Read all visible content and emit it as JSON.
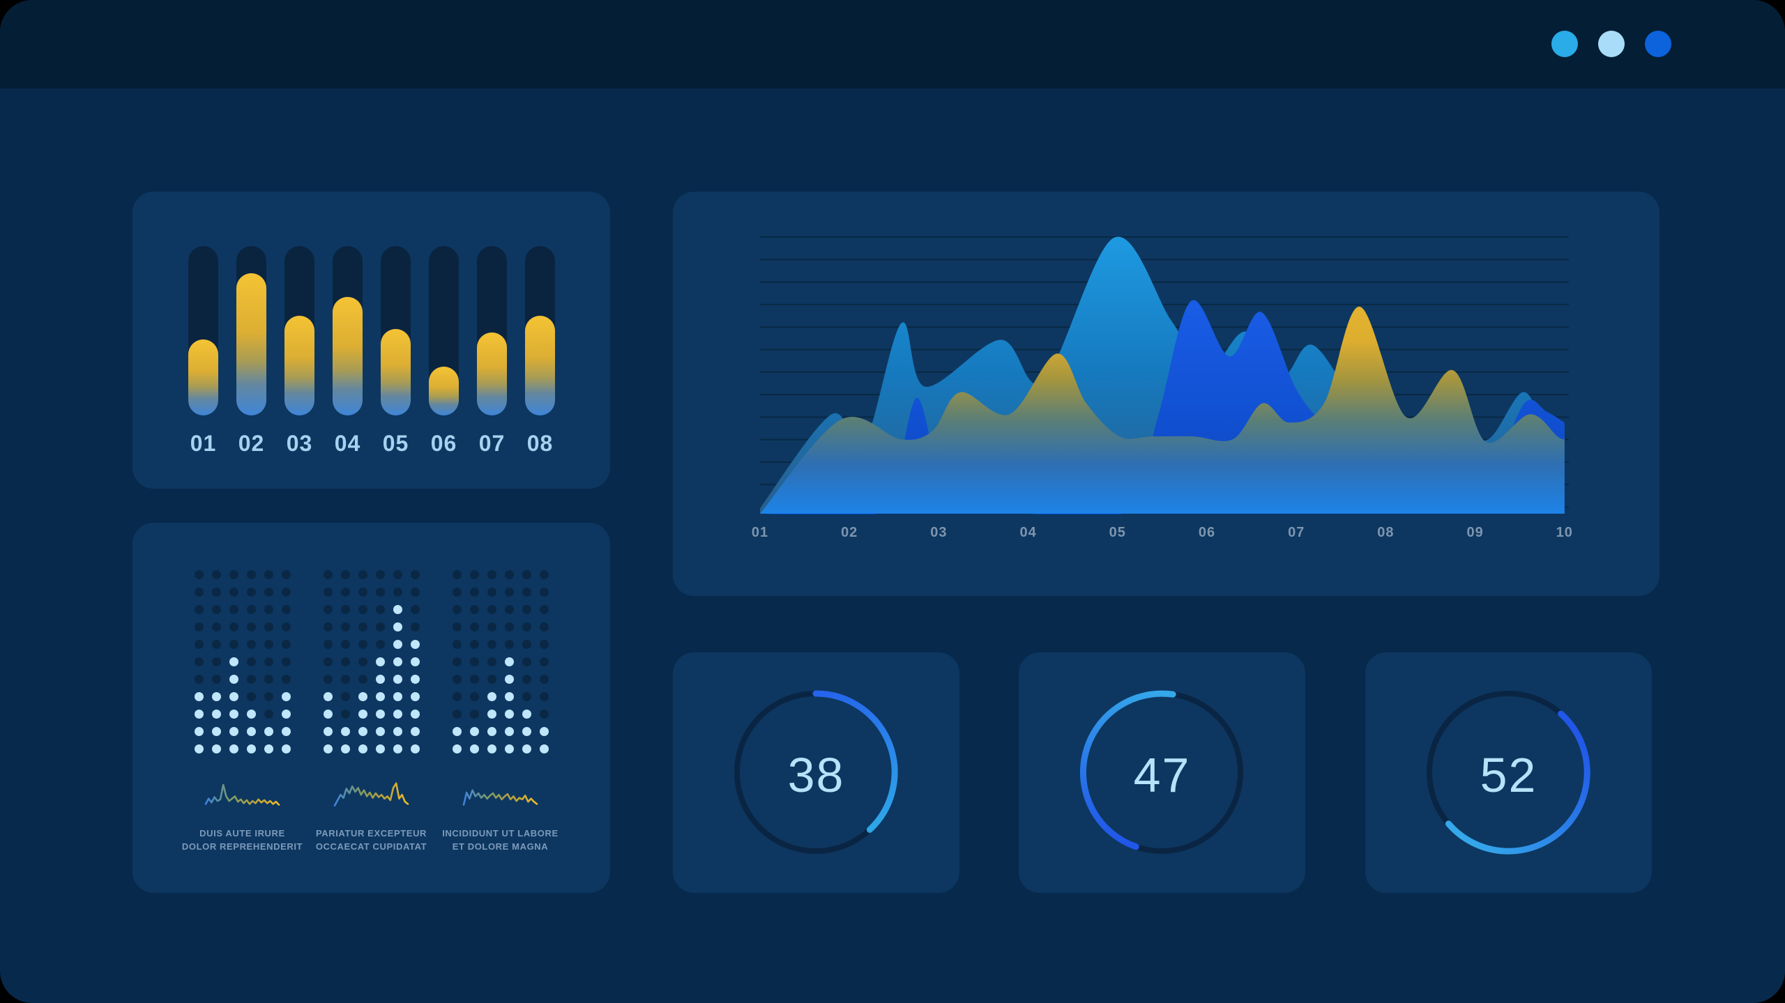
{
  "window": {
    "controls": [
      {
        "name": "cyan",
        "color": "#29ACE8"
      },
      {
        "name": "light",
        "color": "#A9DCF8"
      },
      {
        "name": "royal",
        "color": "#0C63DC"
      }
    ]
  },
  "theme": {
    "page_bg": "#000000",
    "window_bg": "#07294C",
    "topbar_bg": "#041E35",
    "card_bg": "#0D3760",
    "bar_track": "#0A2440",
    "dot_off": "#0A2845",
    "dot_on": "#BFE6FA",
    "bar_label": "#A5D3F0",
    "axis_label": "#7E95AF",
    "caption": "#7D9ABB",
    "gridline": "#092844",
    "gauge_track": "#0A2543",
    "gauge_number": "#B5E3FA",
    "accent_royal": "#2156E8",
    "accent_cyan": "#2FA5E8"
  },
  "chart_data": [
    {
      "type": "bar",
      "title": "",
      "categories": [
        "01",
        "02",
        "03",
        "04",
        "05",
        "06",
        "07",
        "08"
      ],
      "values": [
        45,
        84,
        59,
        70,
        51,
        29,
        49,
        59
      ],
      "ylim": [
        0,
        100
      ],
      "bar_gradient": [
        "#F4C334",
        "#DCAE33",
        "#A89C55",
        "#64879F",
        "#3F86D8"
      ]
    },
    {
      "type": "dot-matrix",
      "rows": 11,
      "cols": 6,
      "spark_gradient": [
        "#3E82DE",
        "#7E9B63",
        "#BCA23C",
        "#EABB2E"
      ],
      "groups": [
        {
          "caption": [
            "DUIS AUTE IRURE",
            "DOLOR REPREHENDERIT"
          ],
          "levels": [
            4,
            4,
            6,
            3,
            2,
            4
          ],
          "sparkline": [
            10,
            24,
            14,
            28,
            18,
            22,
            60,
            30,
            18,
            24,
            30,
            16,
            22,
            12,
            20,
            10,
            18,
            12,
            22,
            14,
            20,
            12,
            18,
            10,
            16,
            8
          ]
        },
        {
          "caption": [
            "PARIATUR EXCEPTEUR",
            "OCCAECAT CUPIDATAT"
          ],
          "levels": [
            4,
            2,
            4,
            6,
            9,
            7
          ],
          "sparkline": [
            6,
            20,
            34,
            26,
            50,
            38,
            56,
            42,
            52,
            34,
            46,
            30,
            40,
            26,
            38,
            28,
            34,
            24,
            30,
            20,
            52,
            64,
            24,
            34,
            16,
            10
          ]
        },
        {
          "caption": [
            "INCIDIDUNT UT LABORE",
            "ET DOLORE MAGNA"
          ],
          "levels": [
            2,
            2,
            4,
            6,
            3,
            2
          ],
          "sparkline": [
            8,
            40,
            24,
            46,
            30,
            38,
            26,
            34,
            24,
            32,
            38,
            26,
            34,
            22,
            30,
            36,
            22,
            30,
            18,
            26,
            22,
            32,
            16,
            24,
            16,
            10
          ]
        }
      ]
    },
    {
      "type": "area",
      "x_labels": [
        "01",
        "02",
        "03",
        "04",
        "05",
        "06",
        "07",
        "08",
        "09",
        "10"
      ],
      "gridlines": 13,
      "ylim": [
        0,
        100
      ],
      "legend": "none",
      "series": [
        {
          "name": "cerulean",
          "gradient": [
            "#1E9AE2",
            "#1679BE",
            "#285E8C"
          ],
          "points": [
            [
              1,
              2
            ],
            [
              1.8,
              36
            ],
            [
              2.15,
              24
            ],
            [
              2.58,
              69
            ],
            [
              2.85,
              46
            ],
            [
              3.69,
              63
            ],
            [
              4.17,
              48
            ],
            [
              4.96,
              100
            ],
            [
              5.6,
              70
            ],
            [
              6.0,
              52
            ],
            [
              6.43,
              66
            ],
            [
              6.84,
              50
            ],
            [
              7.19,
              61
            ],
            [
              7.77,
              36
            ],
            [
              8.33,
              30
            ],
            [
              8.8,
              30
            ],
            [
              9.15,
              27
            ],
            [
              9.53,
              44
            ],
            [
              9.77,
              33
            ],
            [
              10,
              32
            ]
          ]
        },
        {
          "name": "royal",
          "gradient": [
            "#1E63F2",
            "#0A46C0"
          ],
          "points": [
            [
              1,
              0
            ],
            [
              2.3,
              0
            ],
            [
              2.55,
              18
            ],
            [
              2.76,
              42
            ],
            [
              3.0,
              16
            ],
            [
              3.3,
              3
            ],
            [
              4.0,
              0
            ],
            [
              5.1,
              1
            ],
            [
              5.45,
              35
            ],
            [
              5.82,
              77
            ],
            [
              6.25,
              57
            ],
            [
              6.61,
              73
            ],
            [
              7.0,
              45
            ],
            [
              7.35,
              30
            ],
            [
              7.7,
              14
            ],
            [
              8.1,
              4
            ],
            [
              8.8,
              3
            ],
            [
              9.19,
              14
            ],
            [
              9.55,
              40
            ],
            [
              9.8,
              37
            ],
            [
              10,
              33
            ]
          ]
        },
        {
          "name": "gold",
          "gradient": [
            "#F2BE31",
            "#DDAD2F",
            "#A4953F",
            "#5C7F75",
            "#2E6FB2",
            "#1D83E8"
          ],
          "points": [
            [
              1,
              0
            ],
            [
              1.9,
              34
            ],
            [
              2.57,
              27
            ],
            [
              2.93,
              30
            ],
            [
              3.24,
              44
            ],
            [
              3.79,
              36
            ],
            [
              4.32,
              58
            ],
            [
              4.65,
              40
            ],
            [
              5.02,
              28
            ],
            [
              5.39,
              28
            ],
            [
              5.85,
              28
            ],
            [
              6.29,
              27
            ],
            [
              6.62,
              40
            ],
            [
              6.92,
              33
            ],
            [
              7.31,
              40
            ],
            [
              7.71,
              75
            ],
            [
              8.23,
              35
            ],
            [
              8.75,
              52
            ],
            [
              9.12,
              26
            ],
            [
              9.61,
              36
            ],
            [
              9.92,
              28
            ],
            [
              10,
              27
            ]
          ]
        }
      ]
    },
    {
      "type": "gauge",
      "gauges": [
        {
          "value": 38,
          "start_deg": 0,
          "color_start": "#2563EC",
          "color_end": "#2EA6E8"
        },
        {
          "value": 47,
          "start_deg": 199,
          "color_start": "#2156E8",
          "color_end": "#35A8EA"
        },
        {
          "value": 52,
          "start_deg": 42,
          "color_start": "#2156E8",
          "color_end": "#35A8EA"
        }
      ]
    }
  ]
}
